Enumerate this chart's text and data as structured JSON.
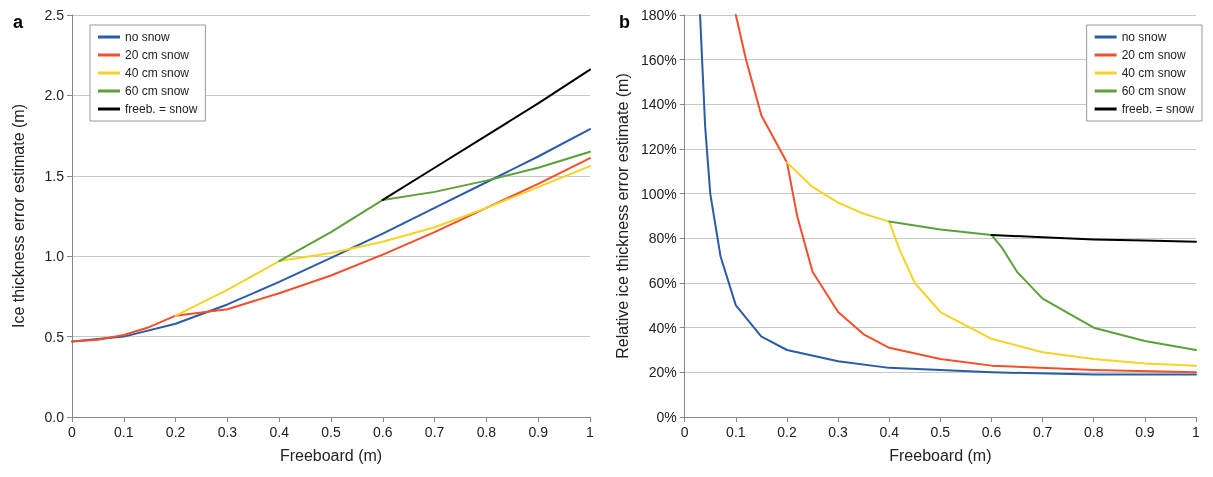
{
  "chart_data": [
    {
      "type": "line",
      "title": "a",
      "xlabel": "Freeboard (m)",
      "ylabel": "Ice thickness error estimate (m)",
      "xlim": [
        0,
        1
      ],
      "xticks": [
        0,
        0.1,
        0.2,
        0.3,
        0.4,
        0.5,
        0.6,
        0.7,
        0.8,
        0.9,
        1
      ],
      "ylim": [
        0,
        2.5
      ],
      "yticks": [
        {
          "value": 0,
          "label": "0.0"
        },
        0.5,
        {
          "value": 1,
          "label": "1.0"
        },
        1.5,
        {
          "value": 2,
          "label": "2.0"
        },
        2.5
      ],
      "grid": "y",
      "legend": "top left",
      "marker": "none",
      "line_style": "solid",
      "series": [
        {
          "name": "no snow",
          "color": "#2a5ca8",
          "x": [
            0,
            0.1,
            0.2,
            0.3,
            0.4,
            0.5,
            0.6,
            0.7,
            0.8,
            0.9,
            1
          ],
          "values": [
            0.47,
            0.5,
            0.58,
            0.7,
            0.84,
            0.99,
            1.14,
            1.3,
            1.46,
            1.62,
            1.79
          ]
        },
        {
          "name": "20 cm snow",
          "color": "#f0502a",
          "x": [
            0,
            0.05,
            0.1,
            0.15,
            0.2,
            0.3,
            0.4,
            0.5,
            0.6,
            0.7,
            0.8,
            0.9,
            1
          ],
          "values": [
            0.47,
            0.48,
            0.51,
            0.56,
            0.63,
            0.67,
            0.77,
            0.88,
            1.01,
            1.15,
            1.3,
            1.45,
            1.61
          ]
        },
        {
          "name": "40 cm snow",
          "color": "#f5d327",
          "x": [
            0.2,
            0.3,
            0.4,
            0.5,
            0.6,
            0.7,
            0.8,
            0.9,
            1
          ],
          "values": [
            0.63,
            0.79,
            0.97,
            1.02,
            1.09,
            1.18,
            1.3,
            1.43,
            1.56
          ]
        },
        {
          "name": "60 cm snow",
          "color": "#5ca03a",
          "x": [
            0.4,
            0.5,
            0.6,
            0.7,
            0.8,
            0.9,
            1
          ],
          "values": [
            0.97,
            1.15,
            1.35,
            1.4,
            1.47,
            1.55,
            1.65
          ]
        },
        {
          "name": "freeb. = snow",
          "color": "#000000",
          "x": [
            0.6,
            0.7,
            0.8,
            0.9,
            1
          ],
          "values": [
            1.35,
            1.55,
            1.75,
            1.95,
            2.16
          ]
        }
      ]
    },
    {
      "type": "line",
      "title": "b",
      "xlabel": "Freeboard (m)",
      "ylabel": "Relative ice thickness error estimate (m)",
      "xlim": [
        0,
        1
      ],
      "xticks": [
        0,
        0.1,
        0.2,
        0.3,
        0.4,
        0.5,
        0.6,
        0.7,
        0.8,
        0.9,
        1
      ],
      "ylim": [
        0,
        180
      ],
      "yticks": [
        {
          "value": 0,
          "label": "0%"
        },
        {
          "value": 20,
          "label": "20%"
        },
        {
          "value": 40,
          "label": "40%"
        },
        {
          "value": 60,
          "label": "60%"
        },
        {
          "value": 80,
          "label": "80%"
        },
        {
          "value": 100,
          "label": "100%"
        },
        {
          "value": 120,
          "label": "120%"
        },
        {
          "value": 140,
          "label": "140%"
        },
        {
          "value": 160,
          "label": "160%"
        },
        {
          "value": 180,
          "label": "180%"
        }
      ],
      "grid": "y",
      "legend": "top right",
      "marker": "none",
      "line_style": "solid",
      "series": [
        {
          "name": "no snow",
          "color": "#2a5ca8",
          "x": [
            0.03,
            0.04,
            0.05,
            0.07,
            0.1,
            0.15,
            0.2,
            0.3,
            0.4,
            0.5,
            0.6,
            0.8,
            1
          ],
          "values": [
            180,
            130,
            100,
            72,
            50,
            36,
            30,
            25,
            22,
            21,
            20,
            19,
            19
          ]
        },
        {
          "name": "20 cm snow",
          "color": "#f0502a",
          "x": [
            0.1,
            0.12,
            0.15,
            0.2,
            0.22,
            0.25,
            0.3,
            0.35,
            0.4,
            0.5,
            0.6,
            0.8,
            1
          ],
          "values": [
            180,
            160,
            135,
            114,
            90,
            65,
            47,
            37,
            31,
            26,
            23,
            21,
            20
          ]
        },
        {
          "name": "40 cm snow",
          "color": "#f5d327",
          "x": [
            0.2,
            0.25,
            0.3,
            0.35,
            0.4,
            0.42,
            0.45,
            0.5,
            0.6,
            0.7,
            0.8,
            0.9,
            1
          ],
          "values": [
            114,
            103,
            96,
            91,
            87.5,
            75,
            60,
            47,
            35,
            29,
            26,
            24,
            23
          ]
        },
        {
          "name": "60 cm snow",
          "color": "#5ca03a",
          "x": [
            0.4,
            0.5,
            0.6,
            0.62,
            0.65,
            0.7,
            0.8,
            0.9,
            1
          ],
          "values": [
            87.5,
            84,
            81.5,
            76,
            65,
            53,
            40,
            34,
            30
          ]
        },
        {
          "name": "freeb. = snow",
          "color": "#000000",
          "x": [
            0.6,
            0.7,
            0.8,
            0.9,
            1
          ],
          "values": [
            81.5,
            80.5,
            79.5,
            79,
            78.5
          ]
        }
      ]
    }
  ]
}
